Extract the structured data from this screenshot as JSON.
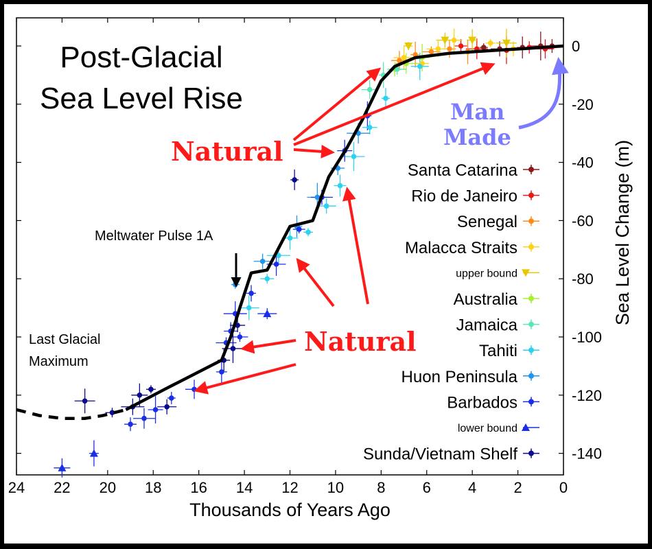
{
  "chart_data": {
    "type": "scatter",
    "title": [
      "Post-Glacial",
      "Sea Level Rise"
    ],
    "xlabel": "Thousands of Years Ago",
    "ylabel": "Sea Level Change (m)",
    "xlim": [
      24,
      0
    ],
    "ylim": [
      -150,
      5
    ],
    "x_ticks": [
      24,
      22,
      20,
      18,
      16,
      14,
      12,
      10,
      8,
      6,
      4,
      2,
      0
    ],
    "y_ticks": [
      0,
      -20,
      -40,
      -60,
      -80,
      -100,
      -120,
      -140
    ],
    "trend_line": {
      "x": [
        19.2,
        17.5,
        15.0,
        14.6,
        14.2,
        13.7,
        13.0,
        12.0,
        11.0,
        10.3,
        9.5,
        8.8,
        8.0,
        7.4,
        6.5,
        5.0,
        3.0,
        1.5,
        0.0
      ],
      "y": [
        -125,
        -118,
        -108,
        -100,
        -90,
        -78,
        -77,
        -62,
        -60,
        -45,
        -35,
        -25,
        -12,
        -7,
        -4,
        -2.5,
        -1.5,
        -0.8,
        0
      ]
    },
    "dashed_extension": {
      "x": [
        24.0,
        23.0,
        22.0,
        21.0,
        20.2,
        19.2
      ],
      "y": [
        -125,
        -127,
        -128,
        -128,
        -127,
        -125
      ]
    },
    "series": [
      {
        "name": "Santa Catarina",
        "color": "#8b1a1a",
        "marker": "circle",
        "x": [
          3.5,
          2.8,
          1.8,
          1.0,
          0.5
        ],
        "y": [
          -0.5,
          -1,
          -0.5,
          0,
          0
        ]
      },
      {
        "name": "Rio de Janeiro",
        "color": "#e61919",
        "marker": "circle",
        "x": [
          4.5,
          3.8,
          2.5,
          1.5,
          0.8
        ],
        "y": [
          0,
          -1,
          -1.5,
          -0.5,
          -1
        ]
      },
      {
        "name": "Senegal",
        "color": "#ff8c1a",
        "marker": "circle",
        "x": [
          7.2,
          6.5,
          5.8,
          5.0,
          4.2
        ],
        "y": [
          -5,
          -3,
          -2,
          -1,
          -2
        ]
      },
      {
        "name": "Malacca Straits",
        "color": "#ffd21a",
        "marker": "circle",
        "x": [
          7.0,
          6.2,
          5.5,
          4.8,
          3.2,
          2.2
        ],
        "y": [
          -4,
          -6,
          -1,
          2,
          1,
          -1
        ]
      },
      {
        "name": "upper bound",
        "color": "#e6c800",
        "marker": "triangle-down",
        "x": [
          6.8,
          5.2,
          4.0,
          2.5
        ],
        "y": [
          0,
          2,
          2,
          1
        ]
      },
      {
        "name": "Australia",
        "color": "#a6f032",
        "marker": "circle",
        "x": [
          7.4,
          6.9,
          6.2
        ],
        "y": [
          -8,
          -6,
          -4
        ]
      },
      {
        "name": "Jamaica",
        "color": "#5ce6b4",
        "marker": "circle",
        "x": [
          8.5,
          7.9,
          7.3
        ],
        "y": [
          -15,
          -10,
          -8
        ]
      },
      {
        "name": "Tahiti",
        "color": "#2ed2f0",
        "marker": "circle",
        "x": [
          13.8,
          13.0,
          12.5,
          12.0,
          11.2,
          10.4,
          9.8,
          9.2,
          8.5,
          7.8,
          6.3
        ],
        "y": [
          -90,
          -80,
          -72,
          -66,
          -64,
          -55,
          -48,
          -38,
          -28,
          -18,
          -7
        ]
      },
      {
        "name": "Huon Peninsula",
        "color": "#1e96f0",
        "marker": "circle",
        "x": [
          14.4,
          13.2,
          11.7,
          10.8,
          9.9,
          9.0
        ],
        "y": [
          -82,
          -74,
          -62,
          -52,
          -42,
          -30
        ]
      },
      {
        "name": "Barbados",
        "color": "#1a2ee6",
        "marker": "circle",
        "x": [
          19.0,
          18.4,
          17.9,
          17.2,
          16.2,
          15.0,
          14.8,
          14.6,
          14.4,
          14.2,
          13.7,
          12.6,
          11.6,
          10.6,
          9.6,
          8.6
        ],
        "y": [
          -130,
          -128,
          -125,
          -121,
          -118,
          -112,
          -102,
          -98,
          -92,
          -100,
          -85,
          -75,
          -63,
          -52,
          -36,
          -24
        ]
      },
      {
        "name": "lower bound",
        "color": "#1a2ee6",
        "marker": "triangle-up",
        "x": [
          22.0,
          20.6,
          13.0
        ],
        "y": [
          -145,
          -140,
          -92
        ]
      },
      {
        "name": "Sunda/Vietnam Shelf",
        "color": "#0a0a8c",
        "marker": "circle",
        "x": [
          21.0,
          19.8,
          18.9,
          18.6,
          18.1,
          17.4,
          14.9,
          14.5,
          14.3,
          11.8
        ],
        "y": [
          -122,
          -126,
          -124,
          -120,
          -118,
          -124,
          -108,
          -104,
          -96,
          -46
        ]
      }
    ],
    "annotations": [
      "Meltwater Pulse 1A",
      "Last Glacial",
      "Maximum",
      "Natural",
      "Natural",
      "Man",
      "Made"
    ],
    "grid": false,
    "legend_position": "right"
  }
}
